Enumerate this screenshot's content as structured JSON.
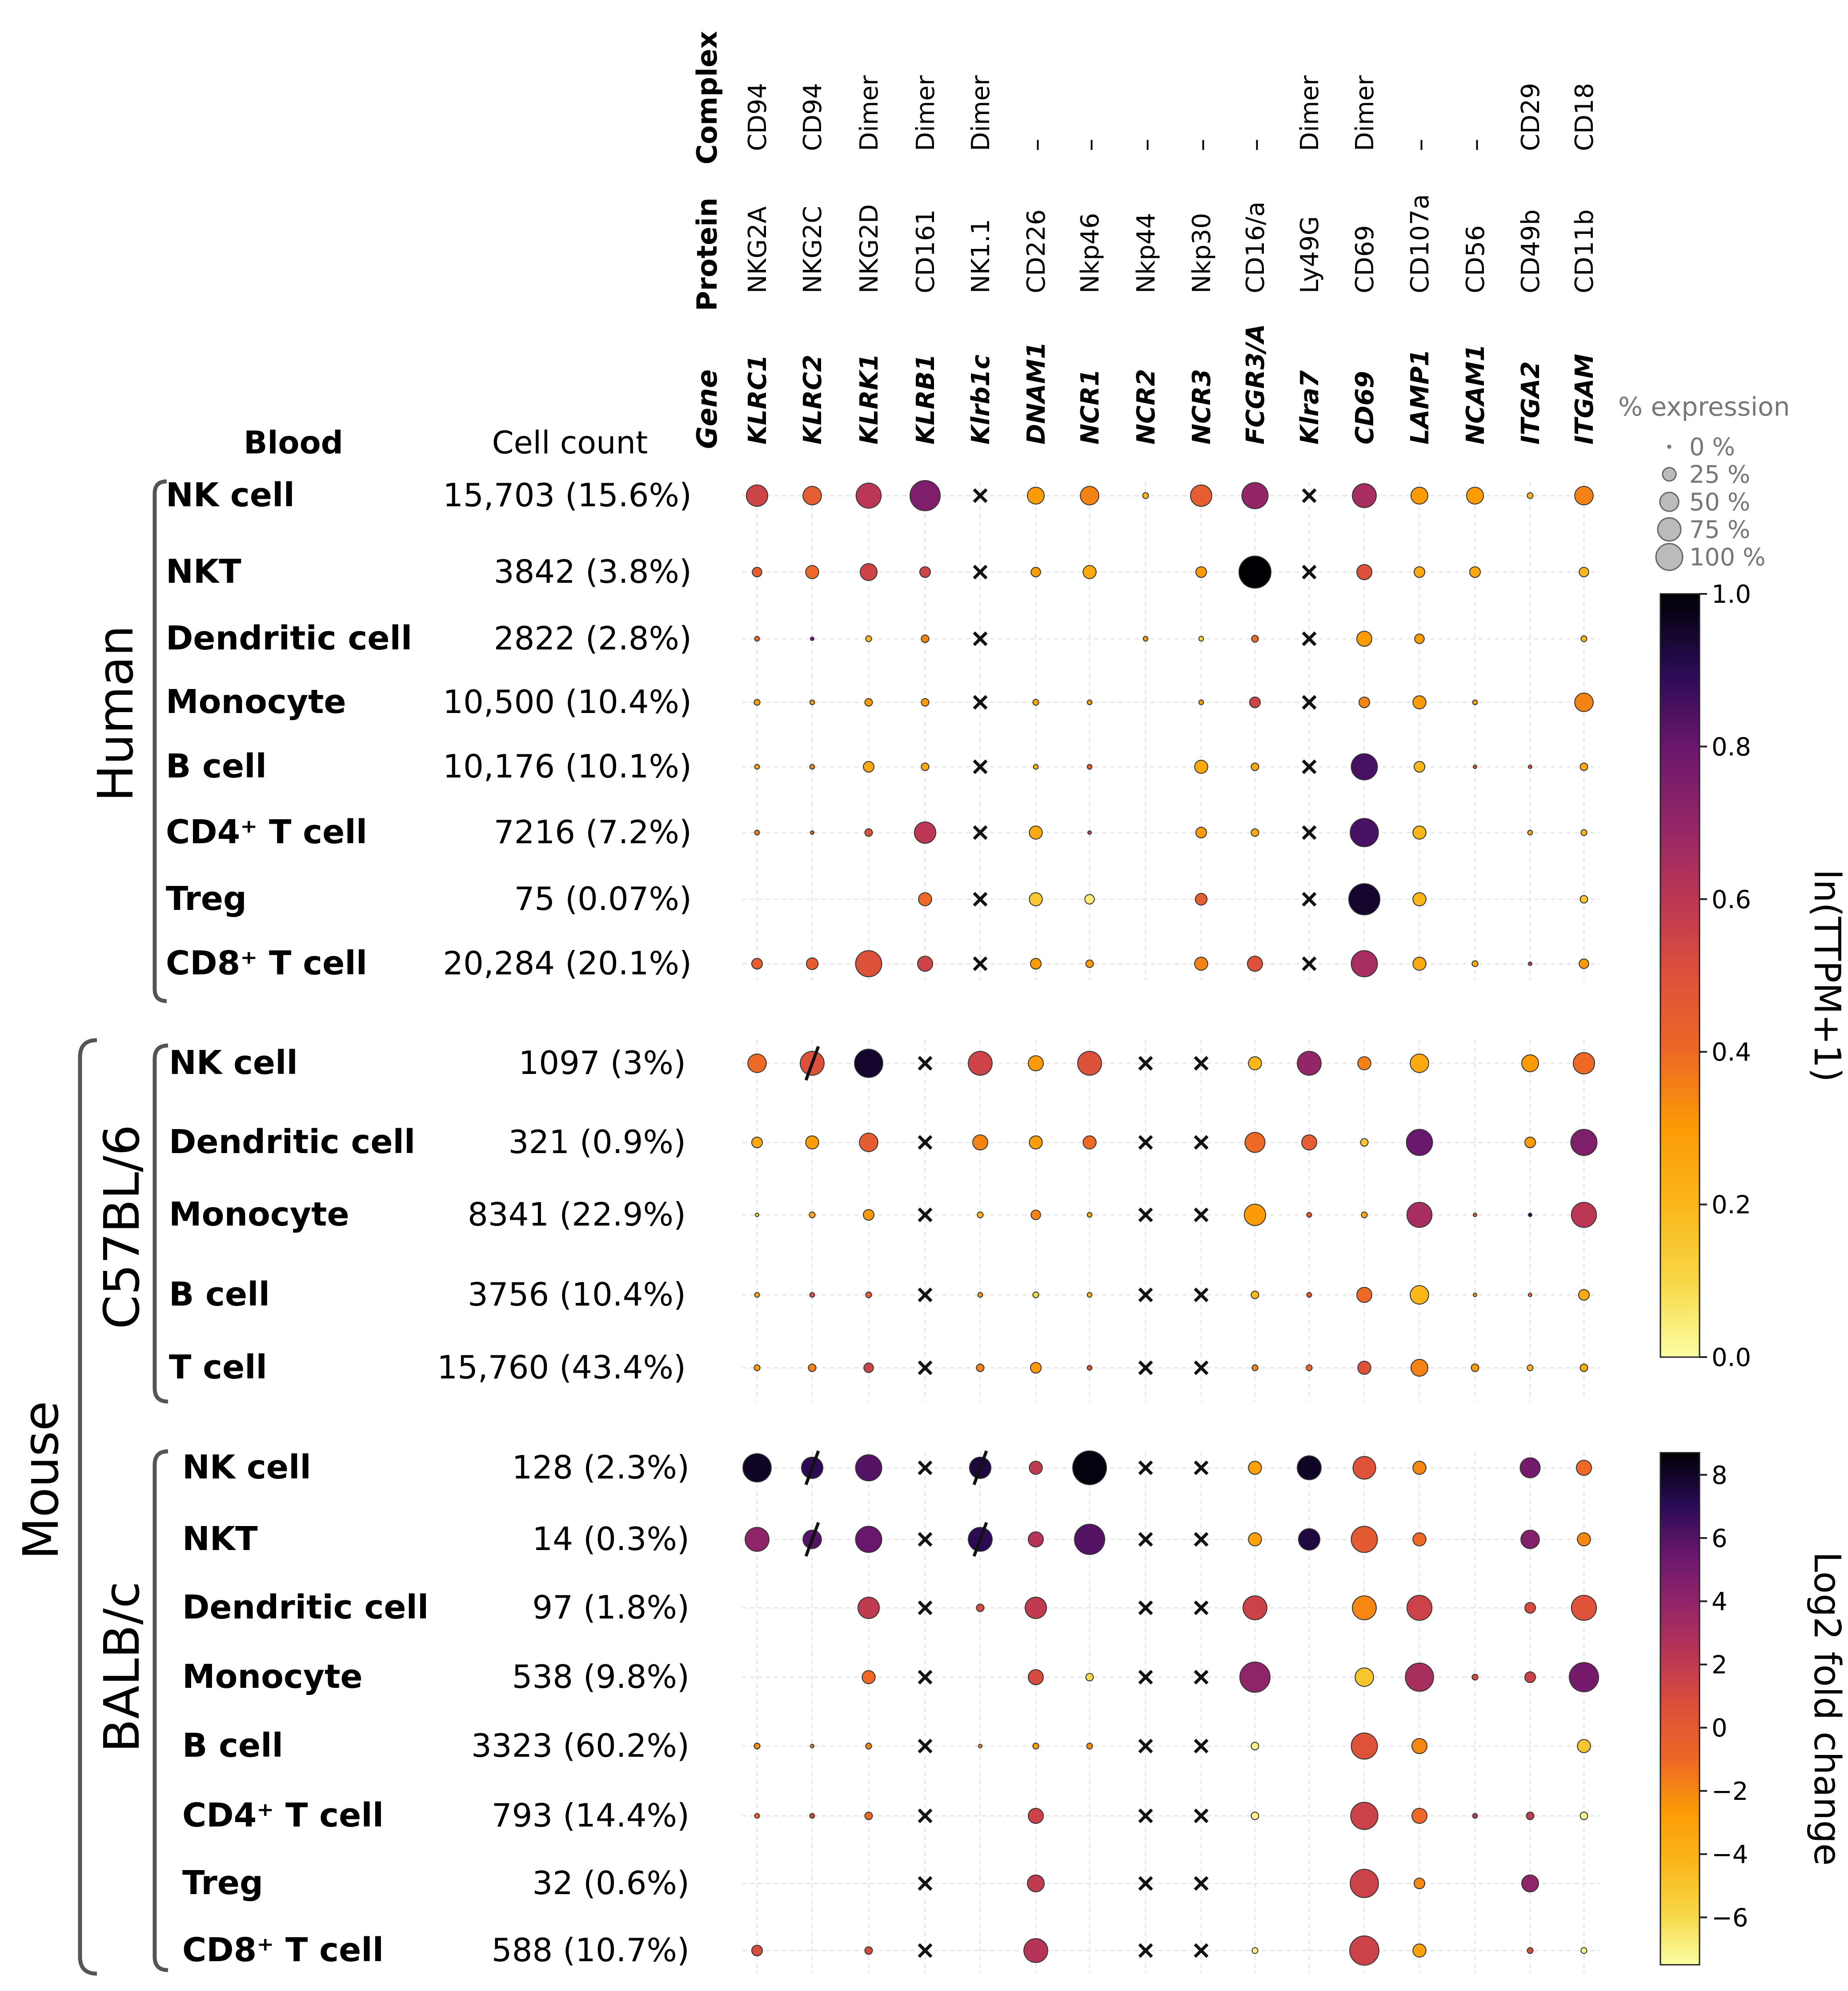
{
  "chart_data": {
    "type": "dot-plot",
    "headers": {
      "complex": "Complex",
      "protein": "Protein",
      "gene": "Gene",
      "blood": "Blood",
      "cell_count": "Cell count"
    },
    "columns": [
      {
        "complex": "CD94",
        "protein": "NKG2A",
        "gene": "KLRC1"
      },
      {
        "complex": "CD94",
        "protein": "NKG2C",
        "gene": "KLRC2"
      },
      {
        "complex": "Dimer",
        "protein": "NKG2D",
        "gene": "KLRK1"
      },
      {
        "complex": "Dimer",
        "protein": "CD161",
        "gene": "KLRB1"
      },
      {
        "complex": "Dimer",
        "protein": "NK1.1",
        "gene": "Klrb1c"
      },
      {
        "complex": "–",
        "protein": "CD226",
        "gene": "DNAM1"
      },
      {
        "complex": "–",
        "protein": "Nkp46",
        "gene": "NCR1"
      },
      {
        "complex": "–",
        "protein": "Nkp44",
        "gene": "NCR2"
      },
      {
        "complex": "–",
        "protein": "Nkp30",
        "gene": "NCR3"
      },
      {
        "complex": "–",
        "protein": "CD16/a",
        "gene": "FCGR3/A"
      },
      {
        "complex": "Dimer",
        "protein": "Ly49G",
        "gene": "Klra7"
      },
      {
        "complex": "Dimer",
        "protein": "CD69",
        "gene": "CD69"
      },
      {
        "complex": "–",
        "protein": "CD107a",
        "gene": "LAMP1"
      },
      {
        "complex": "–",
        "protein": "CD56",
        "gene": "NCAM1"
      },
      {
        "complex": "CD29",
        "protein": "CD49b",
        "gene": "ITGA2"
      },
      {
        "complex": "CD18",
        "protein": "CD11b",
        "gene": "ITGAM"
      }
    ],
    "groups": {
      "human": "Human",
      "mouse": "Mouse",
      "c57": "C57BL/6",
      "balb": "BALB/c"
    },
    "sections": [
      {
        "name": "Human",
        "scale": "ln(TTPM+1)",
        "rows": [
          {
            "label": "NK cell",
            "count": "15,703 (15.6%)",
            "pct": [
              40,
              30,
              55,
              80,
              null,
              25,
              30,
              3,
              40,
              60,
              null,
              50,
              25,
              25,
              3,
              30
            ],
            "val": [
              0.55,
              0.45,
              0.6,
              0.75,
              null,
              0.3,
              0.35,
              0.2,
              0.45,
              0.7,
              null,
              0.65,
              0.3,
              0.3,
              0.2,
              0.35
            ]
          },
          {
            "label": "NKT",
            "count": "3842 (3.8%)",
            "pct": [
              8,
              15,
              25,
              10,
              null,
              8,
              15,
              0,
              10,
              90,
              null,
              20,
              10,
              10,
              0,
              8
            ],
            "val": [
              0.45,
              0.4,
              0.55,
              0.55,
              null,
              0.3,
              0.25,
              0,
              0.3,
              1.0,
              null,
              0.5,
              0.25,
              0.25,
              0,
              0.2
            ]
          },
          {
            "label": "Dendritic cell",
            "count": "2822 (2.8%)",
            "pct": [
              2,
              1,
              3,
              5,
              null,
              0,
              0,
              2,
              2,
              4,
              null,
              20,
              8,
              0,
              0,
              3
            ],
            "val": [
              0.4,
              0.8,
              0.2,
              0.35,
              null,
              0,
              0,
              0.3,
              0.1,
              0.4,
              null,
              0.3,
              0.3,
              0,
              0,
              0.2
            ]
          },
          {
            "label": "Monocyte",
            "count": "10,500 (10.4%)",
            "pct": [
              3,
              2,
              5,
              5,
              null,
              3,
              2,
              0,
              2,
              10,
              null,
              10,
              15,
              2,
              0,
              30
            ],
            "val": [
              0.3,
              0.3,
              0.3,
              0.3,
              null,
              0.25,
              0.3,
              0,
              0.3,
              0.55,
              null,
              0.35,
              0.3,
              0.3,
              0,
              0.35
            ]
          },
          {
            "label": "B cell",
            "count": "10,176 (10.1%)",
            "pct": [
              2,
              2,
              10,
              5,
              null,
              2,
              2,
              0,
              15,
              5,
              null,
              60,
              10,
              1,
              1,
              5
            ],
            "val": [
              0.25,
              0.35,
              0.25,
              0.25,
              null,
              0.2,
              0.45,
              0,
              0.25,
              0.25,
              null,
              0.85,
              0.2,
              0.5,
              0.5,
              0.25
            ]
          },
          {
            "label": "CD4⁺ T cell",
            "count": "7216 (7.2%)",
            "pct": [
              2,
              1,
              5,
              40,
              null,
              15,
              1,
              0,
              10,
              5,
              null,
              70,
              15,
              0,
              2,
              3
            ],
            "val": [
              0.35,
              0.4,
              0.5,
              0.6,
              null,
              0.25,
              0.55,
              0,
              0.3,
              0.25,
              null,
              0.85,
              0.2,
              0,
              0.25,
              0.2
            ]
          },
          {
            "label": "Treg",
            "count": "75 (0.07%)",
            "pct": [
              0,
              0,
              0,
              15,
              null,
              15,
              8,
              0,
              12,
              0,
              null,
              85,
              15,
              0,
              0,
              5
            ],
            "val": [
              0,
              0,
              0,
              0.4,
              null,
              0.15,
              0.05,
              0,
              0.45,
              0,
              null,
              0.95,
              0.2,
              0,
              0,
              0.15
            ]
          },
          {
            "label": "CD8⁺ T cell",
            "count": "20,284 (20.1%)",
            "pct": [
              10,
              12,
              60,
              20,
              null,
              10,
              5,
              0,
              15,
              20,
              null,
              60,
              15,
              3,
              1,
              8
            ],
            "val": [
              0.45,
              0.45,
              0.5,
              0.55,
              null,
              0.3,
              0.3,
              0,
              0.35,
              0.5,
              null,
              0.65,
              0.25,
              0.25,
              0.6,
              0.3
            ]
          }
        ]
      },
      {
        "name": "C57BL/6",
        "scale": "ln(TTPM+1)",
        "rows": [
          {
            "label": "NK cell",
            "count": "1097 (3%)",
            "pct": [
              30,
              50,
              70,
              null,
              50,
              20,
              50,
              null,
              null,
              15,
              50,
              15,
              30,
              0,
              25,
              40
            ],
            "val": [
              0.4,
              0.5,
              0.95,
              null,
              0.55,
              0.3,
              0.5,
              null,
              null,
              0.2,
              0.7,
              0.35,
              0.25,
              0,
              0.3,
              0.4
            ]
          },
          {
            "label": "Dendritic cell",
            "count": "321 (0.9%)",
            "pct": [
              10,
              15,
              30,
              null,
              20,
              15,
              15,
              null,
              null,
              35,
              20,
              5,
              60,
              0,
              10,
              60
            ],
            "val": [
              0.25,
              0.3,
              0.45,
              null,
              0.35,
              0.3,
              0.4,
              null,
              null,
              0.4,
              0.45,
              0.15,
              0.8,
              0,
              0.3,
              0.75
            ]
          },
          {
            "label": "Monocyte",
            "count": "8341 (22.9%)",
            "pct": [
              1,
              3,
              10,
              null,
              3,
              8,
              2,
              null,
              null,
              40,
              2,
              3,
              55,
              1,
              1,
              55
            ],
            "val": [
              0.1,
              0.25,
              0.3,
              null,
              0.2,
              0.35,
              0.25,
              null,
              null,
              0.3,
              0.45,
              0.25,
              0.65,
              0.45,
              0.9,
              0.6
            ]
          },
          {
            "label": "B  cell",
            "count": "3756 (10.4%)",
            "pct": [
              2,
              2,
              3,
              null,
              2,
              3,
              2,
              null,
              null,
              5,
              2,
              20,
              30,
              1,
              1,
              10
            ],
            "val": [
              0.25,
              0.5,
              0.45,
              null,
              0.3,
              0.1,
              0.2,
              null,
              null,
              0.2,
              0.45,
              0.4,
              0.2,
              0.3,
              0.4,
              0.25
            ]
          },
          {
            "label": "T cell",
            "count": "15,760 (43.4%)",
            "pct": [
              3,
              5,
              8,
              null,
              5,
              10,
              2,
              null,
              null,
              3,
              3,
              15,
              25,
              5,
              3,
              5
            ],
            "val": [
              0.3,
              0.35,
              0.55,
              null,
              0.35,
              0.3,
              0.5,
              null,
              null,
              0.35,
              0.4,
              0.5,
              0.35,
              0.3,
              0.2,
              0.25
            ]
          }
        ]
      },
      {
        "name": "BALB/c",
        "scale": "Log2 fold change",
        "rows": [
          {
            "label": "NK cell",
            "count": "128 (2.3%)",
            "pct": [
              70,
              40,
              60,
              null,
              40,
              15,
              100,
              null,
              null,
              15,
              50,
              45,
              15,
              0,
              35,
              20
            ],
            "val": [
              8,
              7,
              6,
              null,
              7.5,
              2,
              8.5,
              null,
              null,
              -3,
              8,
              0.5,
              -2,
              0,
              5,
              -1
            ]
          },
          {
            "label": "NKT",
            "count": "14 (0.3%)",
            "pct": [
              50,
              30,
              60,
              null,
              50,
              20,
              80,
              null,
              null,
              15,
              40,
              60,
              15,
              0,
              30,
              15
            ],
            "val": [
              4,
              6,
              5.5,
              null,
              7,
              2.5,
              6,
              null,
              null,
              -3,
              7.5,
              0,
              -1,
              0,
              4.5,
              -2
            ]
          },
          {
            "label": "Dendritic cell",
            "count": "97 (1.8%)",
            "pct": [
              0,
              0,
              40,
              null,
              5,
              40,
              0,
              null,
              null,
              50,
              0,
              50,
              55,
              0,
              10,
              55
            ],
            "val": [
              0,
              0,
              2,
              null,
              1,
              2,
              0,
              null,
              null,
              1.5,
              0,
              -2,
              1.5,
              0,
              1,
              0.5
            ]
          },
          {
            "label": "Monocyte",
            "count": "538 (9.8%)",
            "pct": [
              0,
              0,
              15,
              null,
              0,
              20,
              5,
              null,
              null,
              80,
              0,
              30,
              70,
              3,
              10,
              75
            ],
            "val": [
              0,
              0,
              -1,
              null,
              0,
              1,
              -6,
              null,
              null,
              4,
              0,
              -5,
              3,
              1,
              1.5,
              5
            ]
          },
          {
            "label": "B cell",
            "count": "3323 (60.2%)",
            "pct": [
              3,
              1,
              3,
              null,
              1,
              3,
              3,
              null,
              null,
              5,
              0,
              60,
              20,
              0,
              0,
              15
            ],
            "val": [
              -2,
              -2,
              -2,
              null,
              -2,
              -3,
              -2,
              null,
              null,
              -7,
              0,
              0.5,
              -2,
              0,
              0,
              -5
            ]
          },
          {
            "label": "CD4⁺ T cell",
            "count": "793 (14.4%)",
            "pct": [
              2,
              2,
              5,
              null,
              0,
              20,
              0,
              null,
              null,
              5,
              0,
              65,
              20,
              2,
              5,
              5
            ],
            "val": [
              -1,
              1,
              -1,
              null,
              0,
              1.5,
              0,
              null,
              null,
              -7,
              0,
              1.5,
              -1,
              2,
              2,
              -7
            ]
          },
          {
            "label": "Treg",
            "count": "32 (0.6%)",
            "pct": [
              0,
              0,
              0,
              null,
              0,
              25,
              0,
              null,
              null,
              0,
              0,
              70,
              10,
              0,
              25,
              0
            ],
            "val": [
              0,
              0,
              0,
              null,
              0,
              2,
              0,
              null,
              null,
              0,
              0,
              1.5,
              -2,
              0,
              4,
              0
            ]
          },
          {
            "label": "CD8⁺ T cell",
            "count": "588 (10.7%)",
            "pct": [
              10,
              0,
              5,
              null,
              0,
              50,
              0,
              null,
              null,
              3,
              0,
              75,
              15,
              0,
              3,
              3
            ],
            "val": [
              1,
              0,
              1,
              null,
              0,
              2.5,
              0,
              null,
              null,
              -7,
              0,
              1.5,
              -3,
              0,
              1,
              -7
            ]
          }
        ]
      }
    ],
    "na_marks": {
      "Human": [
        4,
        10
      ],
      "C57BL/6": [
        3,
        7,
        8
      ],
      "BALB/c": [
        3,
        7,
        8
      ]
    },
    "slash_marks": {
      "C57BL/6": [
        [
          0,
          1
        ]
      ],
      "BALB/c": [
        [
          0,
          1
        ],
        [
          0,
          4
        ],
        [
          1,
          1
        ],
        [
          1,
          4
        ]
      ]
    },
    "size_legend": {
      "title": "% expression",
      "entries": [
        "0 %",
        "25 %",
        "50 %",
        "75 %",
        "100 %"
      ]
    },
    "colorbar1": {
      "label": "ln(TTPM+1)",
      "min": 0.0,
      "max": 1.0,
      "ticks": [
        "0.0",
        "0.2",
        "0.4",
        "0.6",
        "0.8",
        "1.0"
      ]
    },
    "colorbar2": {
      "label": "Log2 fold change",
      "min": -7.5,
      "max": 8.7,
      "ticks": [
        "−6",
        "−4",
        "−2",
        "0",
        "2",
        "4",
        "6",
        "8"
      ],
      "tick_values": [
        -6,
        -4,
        -2,
        0,
        2,
        4,
        6,
        8
      ]
    }
  }
}
